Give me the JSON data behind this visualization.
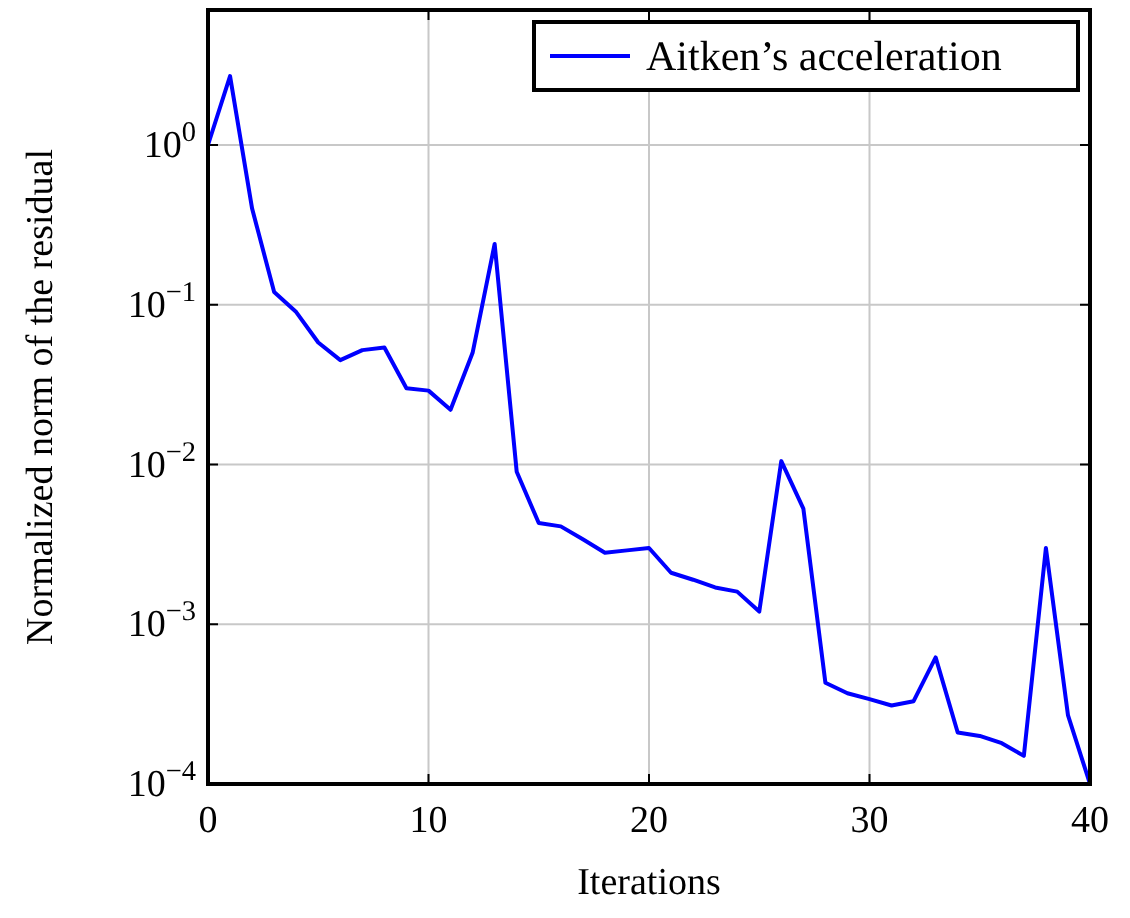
{
  "chart_data": {
    "type": "line",
    "xlabel": "Iterations",
    "ylabel": "Normalized norm of the residual",
    "log": "y",
    "grid": true,
    "legend": "top right",
    "xlim": [
      0,
      40
    ],
    "xticks": [
      0,
      10,
      20,
      30,
      40
    ],
    "ylim": [
      0.0001,
      7
    ],
    "yticks": [
      {
        "value": 0.0001,
        "label": "10$^{−4}$"
      },
      {
        "value": 0.001,
        "label": "10$^{−3}$"
      },
      {
        "value": 0.01,
        "label": "10$^{−2}$"
      },
      {
        "value": 0.1,
        "label": "10$^{−1}$"
      },
      {
        "value": 1,
        "label": "10$^{0}$"
      }
    ],
    "x": [
      0,
      1,
      2,
      3,
      4,
      5,
      6,
      7,
      8,
      9,
      10,
      11,
      12,
      13,
      14,
      15,
      16,
      17,
      18,
      19,
      20,
      21,
      22,
      23,
      24,
      25,
      26,
      27,
      28,
      29,
      30,
      31,
      32,
      33,
      34,
      35,
      36,
      37,
      38,
      39,
      40
    ],
    "series": [
      {
        "name": "Aitken’s acceleration",
        "color": "#0000ff",
        "values": [
          1.0,
          2.7,
          0.4,
          0.12,
          0.09,
          0.058,
          0.045,
          0.052,
          0.054,
          0.03,
          0.029,
          0.022,
          0.05,
          0.24,
          0.009,
          0.0043,
          0.0041,
          0.0034,
          0.0028,
          0.0029,
          0.003,
          0.0021,
          0.0019,
          0.0017,
          0.0016,
          0.0012,
          0.0105,
          0.0053,
          0.00043,
          0.00037,
          0.00034,
          0.00031,
          0.00033,
          0.00062,
          0.00021,
          0.0002,
          0.00018,
          0.00015,
          0.003,
          0.00027,
          0.0001
        ]
      }
    ]
  }
}
